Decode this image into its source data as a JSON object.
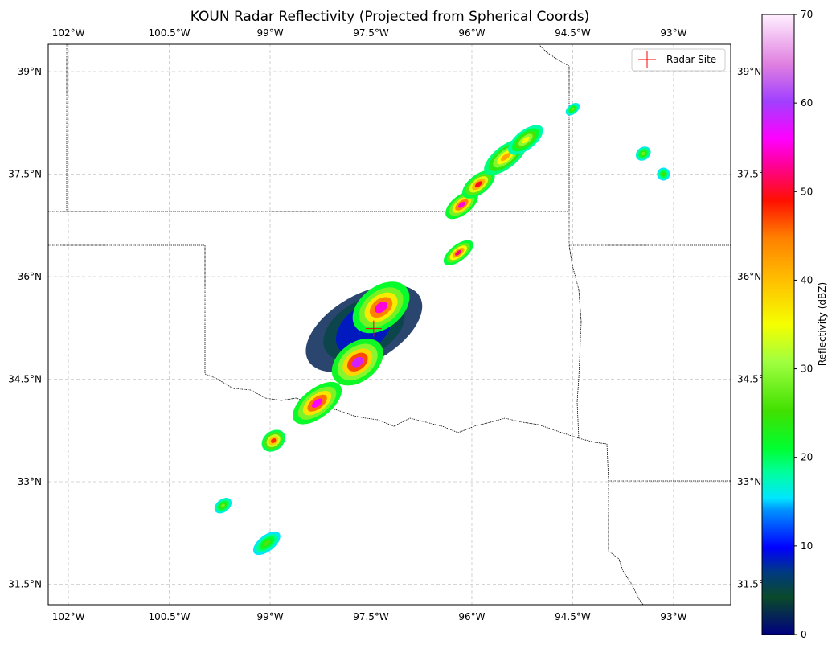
{
  "title": "KOUN Radar Reflectivity (Projected from Spherical Coords)",
  "lon_ticks": [
    "102°W",
    "100.5°W",
    "99°W",
    "97.5°W",
    "96°W",
    "94.5°W",
    "93°W"
  ],
  "lat_ticks": [
    "39°N",
    "37.5°N",
    "36°N",
    "34.5°N",
    "33°N",
    "31.5°N"
  ],
  "legend": {
    "label": "Radar Site",
    "marker_color": "#ff0000",
    "placement": "upper-right"
  },
  "colorbar": {
    "label": "Reflectivity (dBZ)",
    "ticks": [
      "0",
      "10",
      "20",
      "30",
      "40",
      "50",
      "60",
      "70"
    ],
    "min": 0,
    "max": 70
  },
  "chart_data": {
    "type": "heatmap",
    "title": "KOUN Radar Reflectivity (Projected from Spherical Coords)",
    "xlim": [
      -102.3,
      -92.15
    ],
    "ylim": [
      31.2,
      39.4
    ],
    "units": "dBZ",
    "colorscale": "gist_ncar-like",
    "vmin": 0,
    "vmax": 70,
    "grid": true,
    "radar_site": {
      "lon": -97.46,
      "lat": 35.24
    },
    "storm_cells": [
      {
        "lon": -97.35,
        "lat": 35.55,
        "peak_dbz": 55
      },
      {
        "lon": -97.7,
        "lat": 34.75,
        "peak_dbz": 58
      },
      {
        "lon": -98.3,
        "lat": 34.15,
        "peak_dbz": 56
      },
      {
        "lon": -96.2,
        "lat": 36.35,
        "peak_dbz": 52
      },
      {
        "lon": -96.15,
        "lat": 37.05,
        "peak_dbz": 55
      },
      {
        "lon": -95.9,
        "lat": 37.35,
        "peak_dbz": 50
      },
      {
        "lon": -95.5,
        "lat": 37.75,
        "peak_dbz": 42
      },
      {
        "lon": -95.2,
        "lat": 38.0,
        "peak_dbz": 35
      },
      {
        "lon": -98.95,
        "lat": 33.6,
        "peak_dbz": 48
      },
      {
        "lon": -99.7,
        "lat": 32.65,
        "peak_dbz": 28
      },
      {
        "lon": -99.05,
        "lat": 32.1,
        "peak_dbz": 26
      },
      {
        "lon": -93.45,
        "lat": 37.8,
        "peak_dbz": 28
      },
      {
        "lon": -93.15,
        "lat": 37.5,
        "peak_dbz": 25
      },
      {
        "lon": -94.5,
        "lat": 38.45,
        "peak_dbz": 27
      }
    ]
  }
}
